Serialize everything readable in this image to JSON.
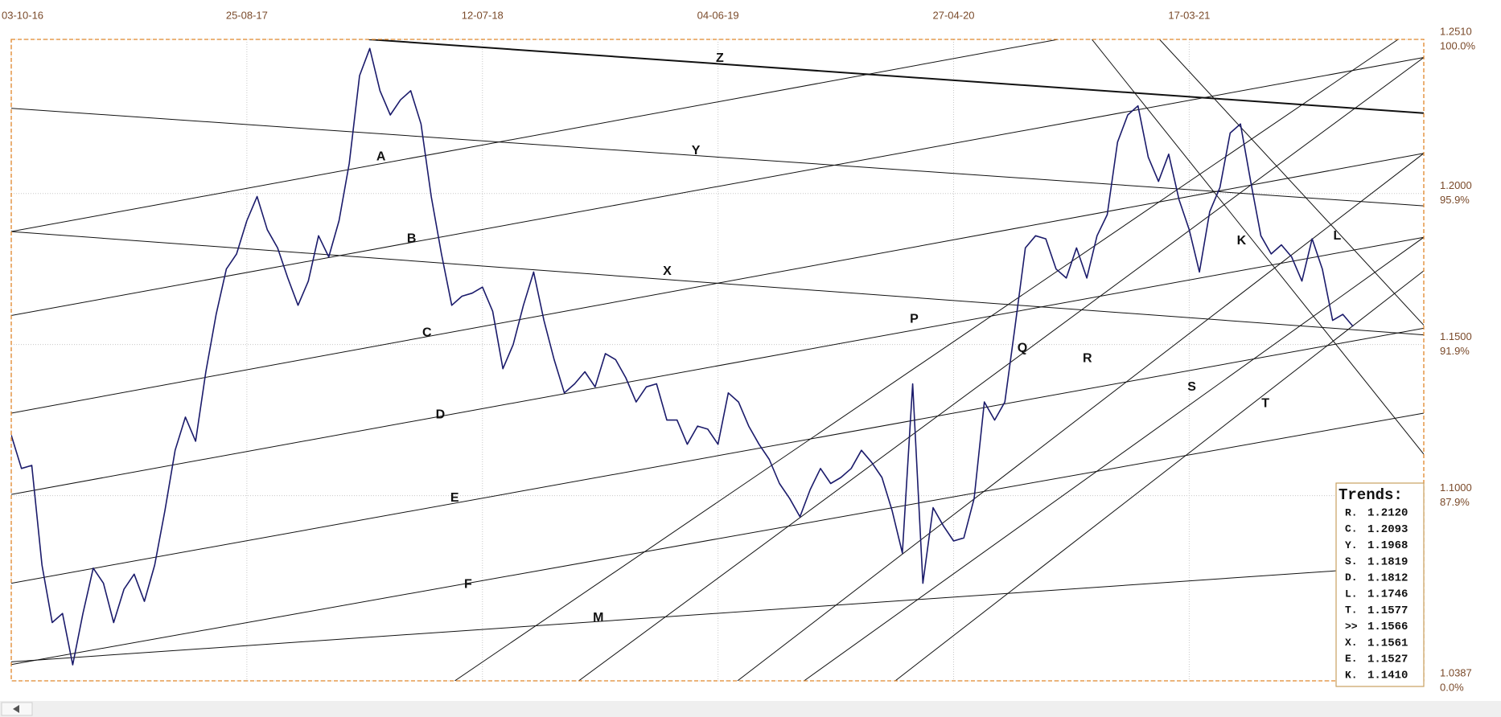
{
  "chart_data": {
    "type": "line",
    "xlim": [
      0,
      1379
    ],
    "ylim": [
      1.0387,
      1.251
    ],
    "xticks": [
      {
        "value": 0,
        "label": "03-10-16"
      },
      {
        "value": 230,
        "label": "25-08-17"
      },
      {
        "value": 460,
        "label": "12-07-18"
      },
      {
        "value": 690,
        "label": "04-06-19"
      },
      {
        "value": 920,
        "label": "27-04-20"
      },
      {
        "value": 1150,
        "label": "17-03-21"
      }
    ],
    "yticks": [
      {
        "value": 1.251,
        "label": "1.2510"
      },
      {
        "value": 1.2,
        "label": "1.2000"
      },
      {
        "value": 1.15,
        "label": "1.1500"
      },
      {
        "value": 1.1,
        "label": "1.1000"
      },
      {
        "value": 1.0387,
        "label": "1.0387"
      }
    ],
    "y_percent_labels": [
      "100.0%",
      "95.9%",
      "91.9%",
      "87.9%",
      "0.0%"
    ],
    "grid": true,
    "series": [
      {
        "color": "#1b1b6b",
        "x": [
          0,
          10,
          20,
          30,
          40,
          50,
          60,
          70,
          80,
          90,
          100,
          110,
          120,
          130,
          140,
          150,
          160,
          170,
          180,
          190,
          200,
          210,
          220,
          230,
          240,
          250,
          260,
          270,
          280,
          290,
          300,
          310,
          320,
          330,
          340,
          350,
          360,
          370,
          380,
          390,
          400,
          410,
          420,
          430,
          440,
          450,
          460,
          470,
          480,
          490,
          500,
          510,
          520,
          530,
          540,
          550,
          560,
          570,
          580,
          590,
          600,
          610,
          620,
          630,
          640,
          650,
          660,
          670,
          680,
          690,
          700,
          710,
          720,
          730,
          740,
          750,
          760,
          770,
          780,
          790,
          800,
          810,
          820,
          830,
          840,
          850,
          860,
          870,
          880,
          890,
          900,
          910,
          920,
          930,
          940,
          950,
          960,
          970,
          980,
          990,
          1000,
          1010,
          1020,
          1030,
          1040,
          1050,
          1060,
          1070,
          1080,
          1090,
          1100,
          1110,
          1120,
          1130,
          1140,
          1150,
          1160,
          1170,
          1180,
          1190,
          1200,
          1210,
          1220,
          1230,
          1240,
          1250,
          1260,
          1270,
          1280,
          1290,
          1300,
          1310
        ],
        "values": [
          1.12,
          1.109,
          1.11,
          1.077,
          1.058,
          1.061,
          1.044,
          1.061,
          1.076,
          1.071,
          1.058,
          1.069,
          1.074,
          1.065,
          1.077,
          1.095,
          1.115,
          1.126,
          1.118,
          1.141,
          1.16,
          1.175,
          1.18,
          1.191,
          1.199,
          1.188,
          1.182,
          1.172,
          1.163,
          1.171,
          1.186,
          1.179,
          1.191,
          1.21,
          1.239,
          1.248,
          1.234,
          1.226,
          1.231,
          1.234,
          1.223,
          1.199,
          1.18,
          1.163,
          1.166,
          1.167,
          1.169,
          1.161,
          1.142,
          1.15,
          1.163,
          1.174,
          1.158,
          1.145,
          1.134,
          1.137,
          1.141,
          1.136,
          1.147,
          1.145,
          1.139,
          1.131,
          1.136,
          1.137,
          1.125,
          1.125,
          1.117,
          1.123,
          1.122,
          1.117,
          1.134,
          1.131,
          1.123,
          1.117,
          1.112,
          1.104,
          1.099,
          1.093,
          1.102,
          1.109,
          1.104,
          1.106,
          1.109,
          1.115,
          1.111,
          1.106,
          1.095,
          1.081,
          1.137,
          1.071,
          1.096,
          1.09,
          1.085,
          1.086,
          1.099,
          1.131,
          1.125,
          1.131,
          1.156,
          1.182,
          1.186,
          1.185,
          1.175,
          1.172,
          1.182,
          1.172,
          1.186,
          1.193,
          1.217,
          1.226,
          1.229,
          1.212,
          1.204,
          1.213,
          1.198,
          1.188,
          1.174,
          1.194,
          1.202,
          1.22,
          1.223,
          1.204,
          1.186,
          1.18,
          1.183,
          1.179,
          1.171,
          1.185,
          1.175,
          1.158,
          1.16,
          1.156
        ]
      }
    ],
    "trendlines": [
      {
        "x": [
          349,
          1379
        ],
        "y": [
          1.251,
          1.2266
        ],
        "bold": true
      },
      {
        "x": [
          0,
          1022
        ],
        "y": [
          1.1874,
          1.251
        ]
      },
      {
        "x": [
          0,
          1379
        ],
        "y": [
          1.1596,
          1.245
        ]
      },
      {
        "x": [
          0,
          1379
        ],
        "y": [
          1.1273,
          1.2133
        ]
      },
      {
        "x": [
          0,
          1379
        ],
        "y": [
          1.1004,
          1.1855
        ]
      },
      {
        "x": [
          0,
          1379
        ],
        "y": [
          1.071,
          1.1554
        ]
      },
      {
        "x": [
          0,
          1379
        ],
        "y": [
          1.0441,
          1.1273
        ]
      },
      {
        "x": [
          0,
          1293
        ],
        "y": [
          1.045,
          1.0751
        ]
      },
      {
        "x": [
          0,
          1379
        ],
        "y": [
          1.2282,
          1.1959
        ]
      },
      {
        "x": [
          0,
          1379
        ],
        "y": [
          1.1874,
          1.1532
        ]
      },
      {
        "x": [
          433,
          1354
        ],
        "y": [
          1.0387,
          1.251
        ]
      },
      {
        "x": [
          554,
          1379
        ],
        "y": [
          1.0387,
          1.245
        ]
      },
      {
        "x": [
          709,
          1379
        ],
        "y": [
          1.0387,
          1.2133
        ]
      },
      {
        "x": [
          774,
          1379
        ],
        "y": [
          1.0387,
          1.1855
        ]
      },
      {
        "x": [
          863,
          1379
        ],
        "y": [
          1.0387,
          1.1744
        ]
      },
      {
        "x": [
          1055,
          1379
        ],
        "y": [
          1.251,
          1.1137
        ]
      },
      {
        "x": [
          1121,
          1379
        ],
        "y": [
          1.251,
          1.1564
        ]
      }
    ],
    "annotations": [
      "Z",
      "Y",
      "X",
      "A",
      "B",
      "C",
      "D",
      "E",
      "F",
      "M",
      "P",
      "Q",
      "R",
      "S",
      "T",
      "K",
      "L"
    ],
    "trends_table": {
      "title": "Trends:",
      "rows": [
        [
          "R.",
          "1.2120"
        ],
        [
          "C.",
          "1.2093"
        ],
        [
          "Y.",
          "1.1968"
        ],
        [
          "S.",
          "1.1819"
        ],
        [
          "D.",
          "1.1812"
        ],
        [
          "L.",
          "1.1746"
        ],
        [
          "T.",
          "1.1577"
        ],
        [
          ">>",
          "1.1566"
        ],
        [
          "X.",
          "1.1561"
        ],
        [
          "E.",
          "1.1527"
        ],
        [
          "K.",
          "1.1410"
        ]
      ]
    }
  }
}
